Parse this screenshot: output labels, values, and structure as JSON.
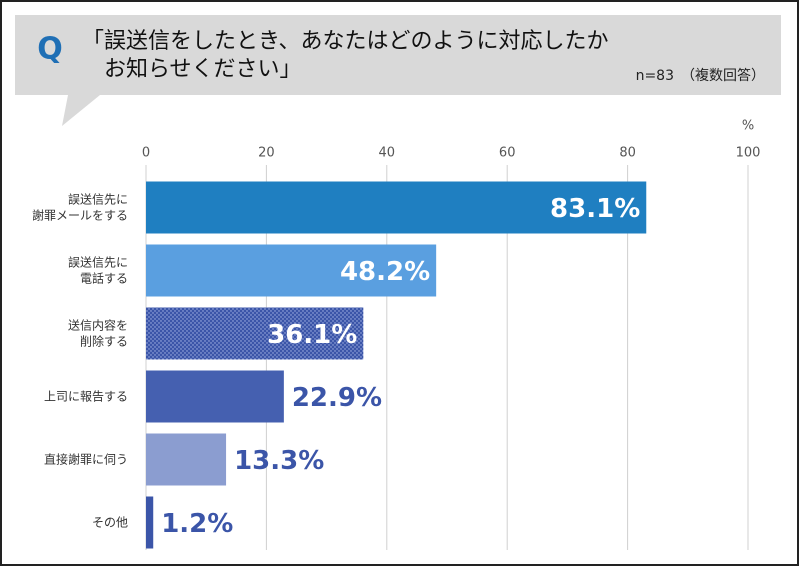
{
  "chart_data": {
    "type": "hbar",
    "badge": "Q",
    "title": "「誤送信をしたとき、あなたはどのように対応したか\nお知らせください」",
    "note": "n=83　（複数回答）",
    "axis_unit": "%",
    "categories": [
      "誤送信先に\n謝罪メールをする",
      "誤送信先に\n電話する",
      "送信内容を\n削除する",
      "上司に報告する",
      "直接謝罪に伺う",
      "その他"
    ],
    "values": [
      83.1,
      48.2,
      36.1,
      22.9,
      13.3,
      1.2
    ],
    "value_labels": [
      "83.1%",
      "48.2%",
      "36.1%",
      "22.9%",
      "13.3%",
      "1.2%"
    ],
    "colors": [
      "#1f7fc1",
      "#5a9fe0",
      "#3b55a8",
      "#4560b0",
      "#8b9dd0",
      "#3b55a8"
    ],
    "fill_pattern": [
      null,
      null,
      "dots",
      null,
      null,
      null
    ],
    "xlim": [
      0,
      100
    ],
    "xticks": [
      0,
      20,
      40,
      60,
      80,
      100
    ],
    "grid": true
  }
}
